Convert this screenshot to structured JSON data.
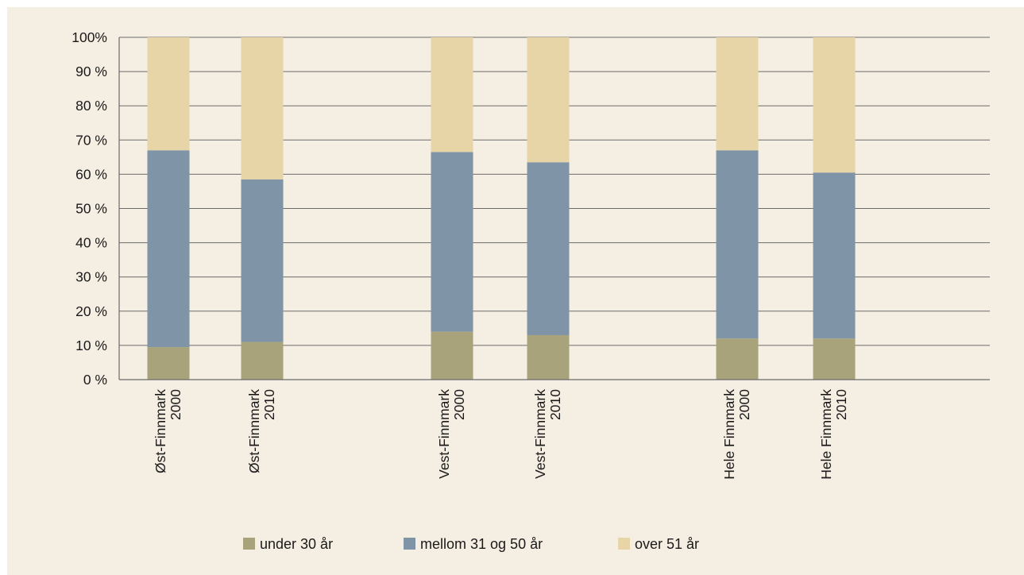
{
  "chart_data": {
    "type": "bar",
    "stacked": true,
    "categories": [
      [
        "Øst-Finnmark",
        "2000"
      ],
      [
        "Øst-Finnmark",
        "2010"
      ],
      [
        "Vest-Finnmark",
        "2000"
      ],
      [
        "Vest-Finnmark",
        "2010"
      ],
      [
        "Hele Finnmark",
        "2000"
      ],
      [
        "Hele Finnmark",
        "2010"
      ]
    ],
    "series": [
      {
        "name": "under 30 år",
        "color": "#a8a37a",
        "values": [
          9.5,
          11,
          14,
          13,
          12,
          12
        ]
      },
      {
        "name": "mellom 31 og 50 år",
        "color": "#7f94a6",
        "values": [
          57.5,
          47.5,
          52.5,
          50.5,
          55,
          48.5
        ]
      },
      {
        "name": "over 51 år",
        "color": "#e7d5a8",
        "values": [
          33,
          41.5,
          33.5,
          36.5,
          33,
          39.5
        ]
      }
    ],
    "ylim": [
      0,
      100
    ],
    "yticks": [
      0,
      10,
      20,
      30,
      40,
      50,
      60,
      70,
      80,
      90,
      100
    ],
    "ytick_labels": [
      "0 %",
      "10 %",
      "20 %",
      "30 %",
      "40 %",
      "50 %",
      "60 %",
      "70 %",
      "80 %",
      "90 %",
      "100%"
    ],
    "grid": true,
    "legend_position": "bottom",
    "background": "#f5eee2",
    "gridline_color": "#6b6b6b"
  }
}
